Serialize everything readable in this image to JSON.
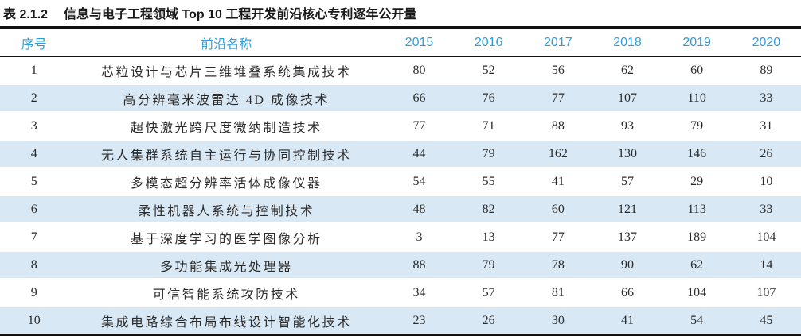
{
  "caption": {
    "label": "表 2.1.2",
    "text": "信息与电子工程领域 Top 10 工程开发前沿核心专利逐年公开量"
  },
  "table": {
    "headers": [
      "序号",
      "前沿名称",
      "2015",
      "2016",
      "2017",
      "2018",
      "2019",
      "2020"
    ],
    "rows": [
      {
        "no": "1",
        "name": "芯粒设计与芯片三维堆叠系统集成技术",
        "values": [
          80,
          52,
          56,
          62,
          60,
          89
        ]
      },
      {
        "no": "2",
        "name": "高分辨毫米波雷达 4D 成像技术",
        "values": [
          66,
          76,
          77,
          107,
          110,
          33
        ]
      },
      {
        "no": "3",
        "name": "超快激光跨尺度微纳制造技术",
        "values": [
          77,
          71,
          88,
          93,
          79,
          31
        ]
      },
      {
        "no": "4",
        "name": "无人集群系统自主运行与协同控制技术",
        "values": [
          44,
          79,
          162,
          130,
          146,
          26
        ]
      },
      {
        "no": "5",
        "name": "多模态超分辨率活体成像仪器",
        "values": [
          54,
          55,
          41,
          57,
          29,
          10
        ]
      },
      {
        "no": "6",
        "name": "柔性机器人系统与控制技术",
        "values": [
          48,
          82,
          60,
          121,
          113,
          33
        ]
      },
      {
        "no": "7",
        "name": "基于深度学习的医学图像分析",
        "values": [
          3,
          13,
          77,
          137,
          189,
          104
        ]
      },
      {
        "no": "8",
        "name": "多功能集成光处理器",
        "values": [
          88,
          79,
          78,
          90,
          62,
          14
        ]
      },
      {
        "no": "9",
        "name": "可信智能系统攻防技术",
        "values": [
          34,
          57,
          81,
          66,
          104,
          107
        ]
      },
      {
        "no": "10",
        "name": "集成电路综合布局布线设计智能化技术",
        "values": [
          23,
          26,
          30,
          41,
          54,
          45
        ]
      }
    ]
  },
  "colors": {
    "accent": "#2f9cd8",
    "stripe_bg": "#d8e8f5",
    "body_text": "#2b2b2b",
    "rule": "#111111"
  }
}
